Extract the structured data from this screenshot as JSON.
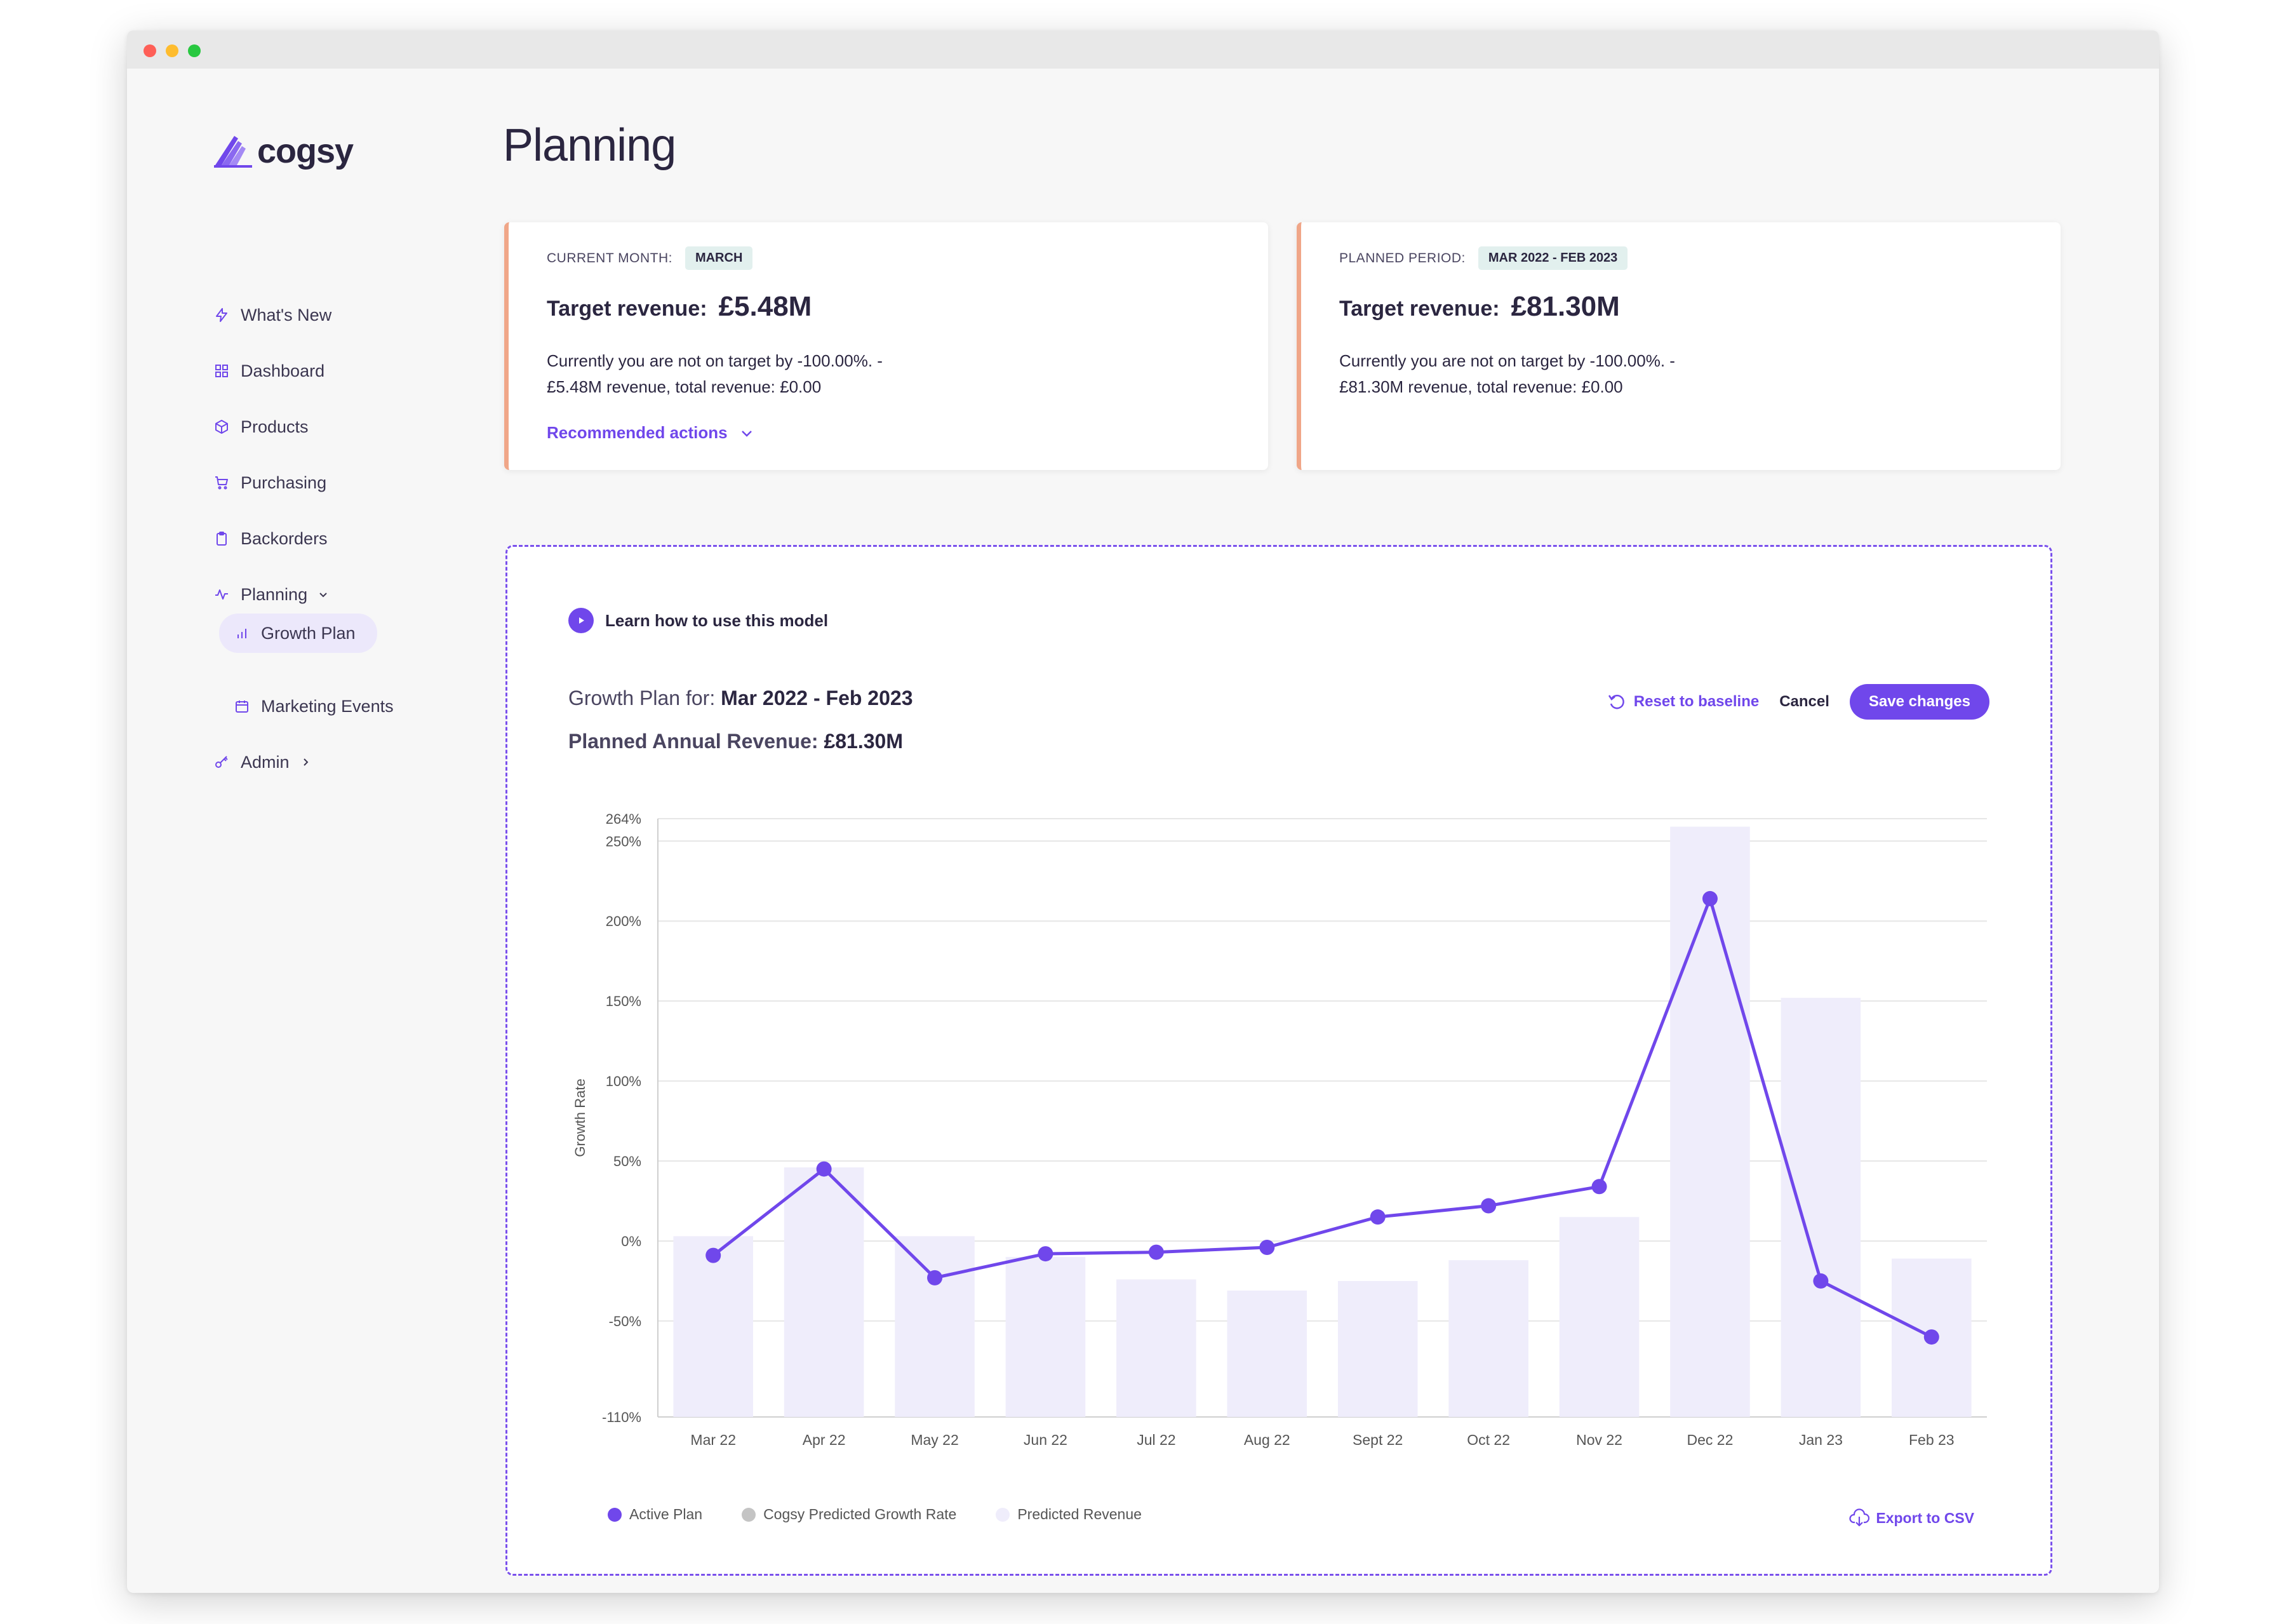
{
  "brand": {
    "name": "cogsy"
  },
  "sidebar": {
    "items": [
      {
        "label": "What's New",
        "icon": "bolt-icon"
      },
      {
        "label": "Dashboard",
        "icon": "grid-icon"
      },
      {
        "label": "Products",
        "icon": "box-icon"
      },
      {
        "label": "Purchasing",
        "icon": "cart-icon"
      },
      {
        "label": "Backorders",
        "icon": "clipboard-icon"
      },
      {
        "label": "Planning",
        "icon": "activity-icon"
      },
      {
        "label": "Growth Plan",
        "icon": "bar-chart-icon"
      },
      {
        "label": "Marketing Events",
        "icon": "calendar-icon"
      },
      {
        "label": "Admin",
        "icon": "key-icon"
      }
    ]
  },
  "page": {
    "title": "Planning"
  },
  "cards": [
    {
      "label": "CURRENT MONTH:",
      "pill": "MARCH",
      "target_label": "Target revenue:",
      "target_value": "£5.48M",
      "desc_line1": "Currently you are not on target by -100.00%. -",
      "desc_line2": "£5.48M revenue, total revenue: £0.00",
      "action": "Recommended actions"
    },
    {
      "label": "PLANNED PERIOD:",
      "pill": "MAR 2022 - FEB 2023",
      "target_label": "Target revenue:",
      "target_value": "£81.30M",
      "desc_line1": "Currently you are not on target by -100.00%. -",
      "desc_line2": "£81.30M revenue, total revenue: £0.00"
    }
  ],
  "model": {
    "learn": "Learn how to use this model",
    "growth_plan_label": "Growth Plan for:",
    "growth_plan_period": "Mar 2022 - Feb 2023",
    "planned_label": "Planned Annual Revenue:",
    "planned_value": "£81.30M",
    "reset": "Reset to baseline",
    "cancel": "Cancel",
    "save": "Save changes",
    "export": "Export to CSV"
  },
  "legend": [
    {
      "label": "Active Plan",
      "color": "#7047eb"
    },
    {
      "label": "Cogsy Predicted Growth Rate",
      "color": "#c4c4c4"
    },
    {
      "label": "Predicted Revenue",
      "color": "#efedfb"
    }
  ],
  "colors": {
    "accent": "#7047eb",
    "card_border": "#f0a688",
    "bar": "#efedfb"
  },
  "chart_data": {
    "type": "bar",
    "ylabel": "Growth Rate",
    "ylim": [
      -110,
      264
    ],
    "y_ticks": [
      -110,
      -50,
      0,
      50,
      100,
      150,
      200,
      250,
      264
    ],
    "y_tick_labels": [
      "-110%",
      "-50%",
      "0%",
      "50%",
      "100%",
      "150%",
      "200%",
      "250%",
      "264%"
    ],
    "categories": [
      "Mar 22",
      "Apr 22",
      "May 22",
      "Jun 22",
      "Jul 22",
      "Aug 22",
      "Sept 22",
      "Oct 22",
      "Nov 22",
      "Dec 22",
      "Jan 23",
      "Feb 23"
    ],
    "series": [
      {
        "name": "Predicted Revenue",
        "type": "bar",
        "values": [
          3,
          46,
          3,
          -10,
          -24,
          -31,
          -25,
          -12,
          15,
          259,
          152,
          -11
        ]
      },
      {
        "name": "Active Plan",
        "type": "line",
        "values": [
          -9,
          45,
          -23,
          -8,
          -7,
          -4,
          15,
          22,
          34,
          214,
          -25,
          -60
        ]
      }
    ],
    "grid": true
  }
}
